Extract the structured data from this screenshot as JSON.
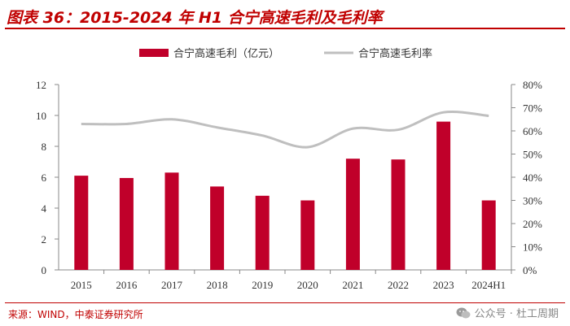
{
  "title": "图表 36：2015-2024 年 H1 合宁高速毛利及毛利率",
  "source": "来源：WIND，中泰证券研究所",
  "watermark": "公众号 · 杜工周期",
  "colors": {
    "accent": "#c00000",
    "bar": "#c0002a",
    "line": "#bfbfbf"
  },
  "chart_data": {
    "type": "bar+line",
    "categories": [
      "2015",
      "2016",
      "2017",
      "2018",
      "2019",
      "2020",
      "2021",
      "2022",
      "2023",
      "2024H1"
    ],
    "series": [
      {
        "name": "合宁高速毛利（亿元）",
        "type": "bar",
        "axis": "left",
        "values": [
          6.1,
          5.95,
          6.3,
          5.4,
          4.8,
          4.5,
          7.2,
          7.15,
          9.6,
          4.5
        ]
      },
      {
        "name": "合宁高速毛利率",
        "type": "line",
        "axis": "right",
        "values": [
          63,
          63,
          65,
          61.5,
          58,
          53,
          61,
          60.5,
          68,
          66.5
        ]
      }
    ],
    "y_left": {
      "min": 0,
      "max": 12,
      "ticks": [
        "0",
        "2",
        "4",
        "6",
        "8",
        "10",
        "12"
      ]
    },
    "y_right": {
      "min": 0,
      "max": 80,
      "ticks": [
        "0%",
        "10%",
        "20%",
        "30%",
        "40%",
        "50%",
        "60%",
        "70%",
        "80%"
      ]
    },
    "legend": "top-center",
    "grid": false
  }
}
